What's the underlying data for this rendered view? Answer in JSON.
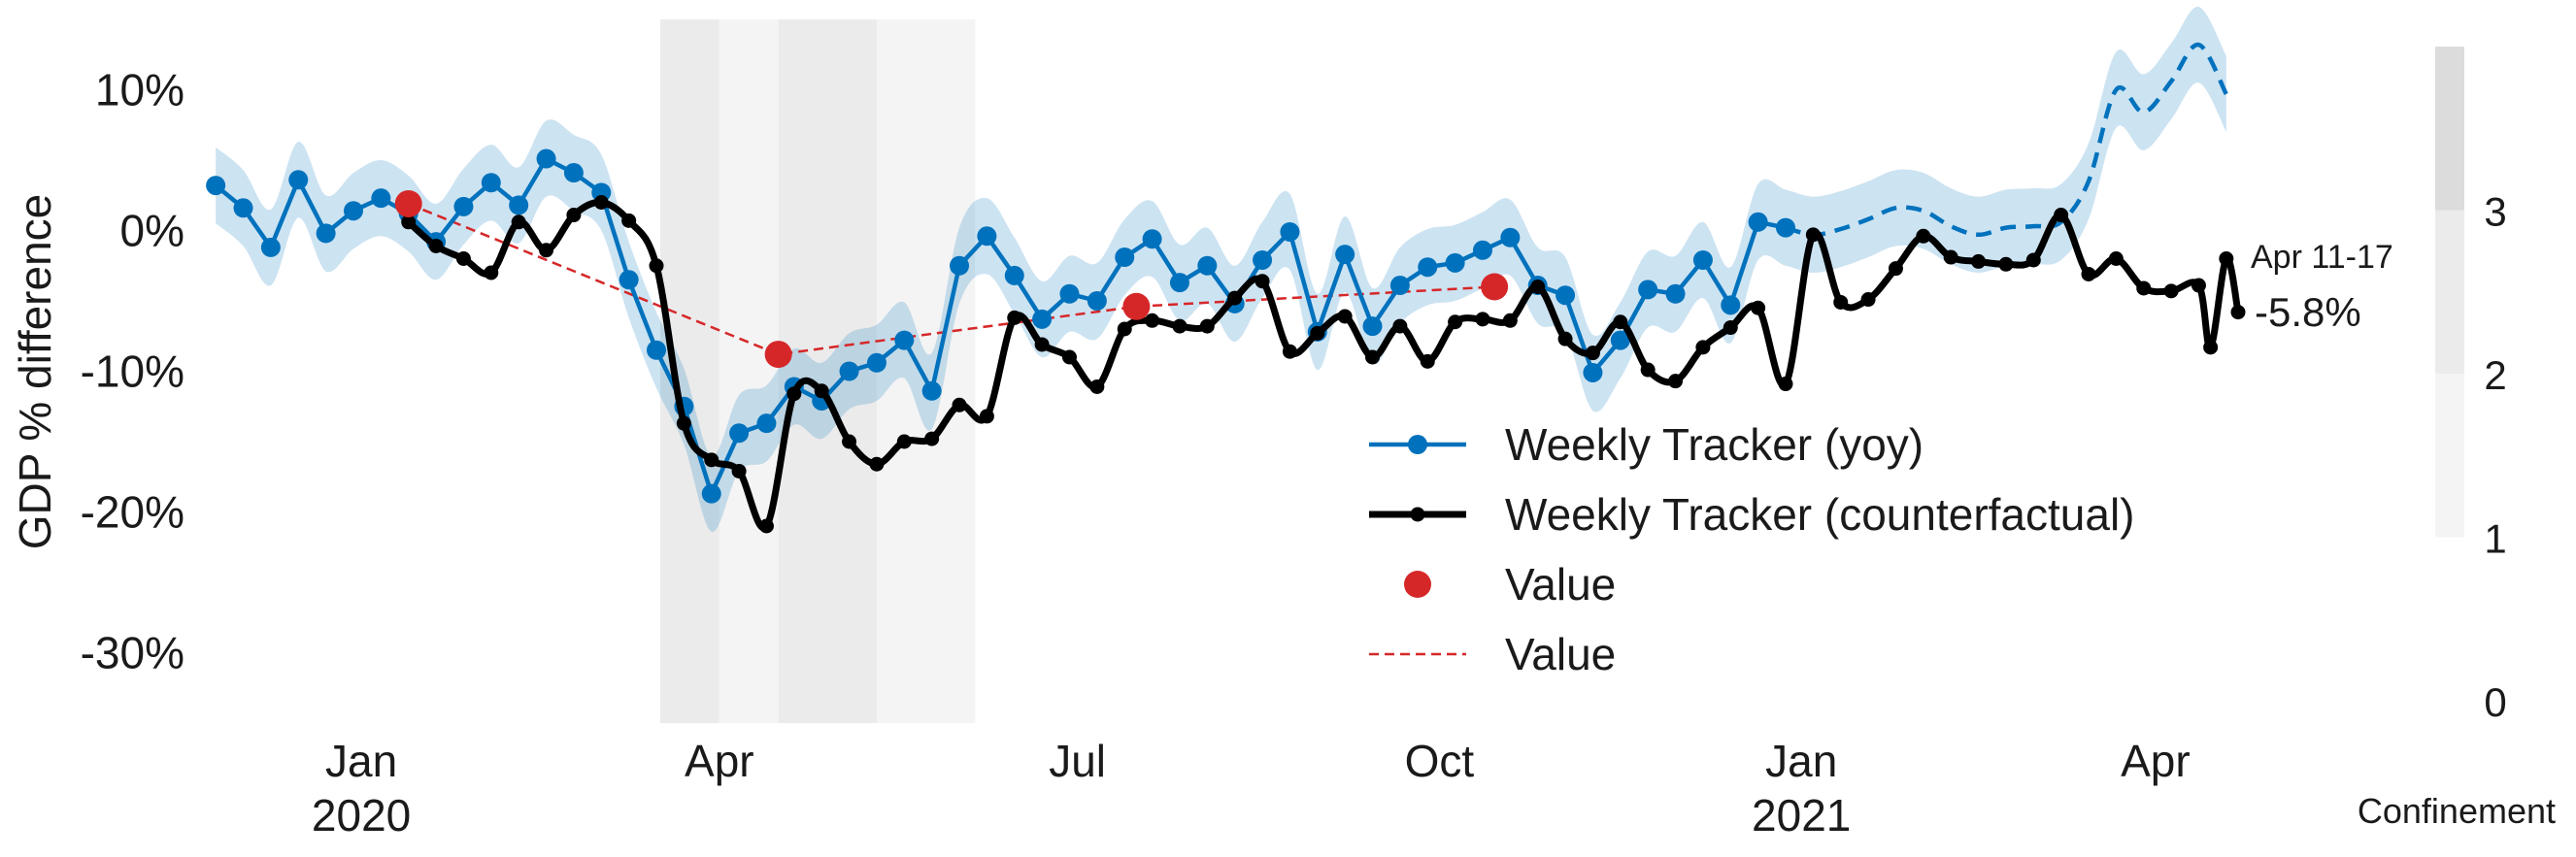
{
  "chart_data": {
    "type": "line",
    "ylabel": "GDP % difference",
    "ylim": [
      -35,
      15
    ],
    "yticks": [
      {
        "value": 10,
        "label": "10%"
      },
      {
        "value": 0,
        "label": "0%"
      },
      {
        "value": -10,
        "label": "-10%"
      },
      {
        "value": -20,
        "label": "-20%"
      },
      {
        "value": -30,
        "label": "-30%"
      }
    ],
    "xlim": [
      "2019-11-22",
      "2021-04-22"
    ],
    "xticks": [
      {
        "date": "2020-01-01",
        "label": "Jan",
        "year": "2020"
      },
      {
        "date": "2020-04-01",
        "label": "Apr",
        "year": ""
      },
      {
        "date": "2020-07-01",
        "label": "Jul",
        "year": ""
      },
      {
        "date": "2020-10-01",
        "label": "Oct",
        "year": ""
      },
      {
        "date": "2021-01-01",
        "label": "Jan",
        "year": "2021"
      },
      {
        "date": "2021-04-01",
        "label": "Apr",
        "year": ""
      }
    ],
    "confinement": {
      "label": "Confinement",
      "levels": [
        0,
        1,
        2,
        3
      ],
      "shades": {
        "1": "#f4f4f4",
        "2": "#ebebeb",
        "3": "#dcdcdc"
      },
      "periods": [
        {
          "start": "2020-03-17",
          "end": "2020-04-01",
          "level": 2
        },
        {
          "start": "2020-04-01",
          "end": "2020-04-16",
          "level": 1
        },
        {
          "start": "2020-04-16",
          "end": "2020-05-11",
          "level": 2
        },
        {
          "start": "2020-05-11",
          "end": "2020-06-05",
          "level": 1
        }
      ]
    },
    "series": [
      {
        "name": "Weekly Tracker (yoy)",
        "color": "#0072bd",
        "points": [
          [
            "2019-11-25",
            3.2
          ],
          [
            "2019-12-02",
            1.6
          ],
          [
            "2019-12-09",
            -1.2
          ],
          [
            "2019-12-16",
            3.6
          ],
          [
            "2019-12-23",
            -0.2
          ],
          [
            "2019-12-30",
            1.4
          ],
          [
            "2020-01-06",
            2.3
          ],
          [
            "2020-01-13",
            1.2
          ],
          [
            "2020-01-20",
            -0.8
          ],
          [
            "2020-01-27",
            1.7
          ],
          [
            "2020-02-03",
            3.4
          ],
          [
            "2020-02-10",
            1.8
          ],
          [
            "2020-02-17",
            5.1
          ],
          [
            "2020-02-24",
            4.1
          ],
          [
            "2020-03-02",
            2.7
          ],
          [
            "2020-03-09",
            -3.5
          ],
          [
            "2020-03-16",
            -8.5
          ],
          [
            "2020-03-23",
            -12.5
          ],
          [
            "2020-03-30",
            -18.7
          ],
          [
            "2020-04-06",
            -14.4
          ],
          [
            "2020-04-13",
            -13.7
          ],
          [
            "2020-04-20",
            -11.1
          ],
          [
            "2020-04-27",
            -12.1
          ],
          [
            "2020-05-04",
            -10.0
          ],
          [
            "2020-05-11",
            -9.4
          ],
          [
            "2020-05-18",
            -7.8
          ],
          [
            "2020-05-25",
            -11.4
          ],
          [
            "2020-06-01",
            -2.5
          ],
          [
            "2020-06-08",
            -0.4
          ],
          [
            "2020-06-15",
            -3.2
          ],
          [
            "2020-06-22",
            -6.3
          ],
          [
            "2020-06-29",
            -4.5
          ],
          [
            "2020-07-06",
            -5.0
          ],
          [
            "2020-07-13",
            -1.9
          ],
          [
            "2020-07-20",
            -0.6
          ],
          [
            "2020-07-27",
            -3.7
          ],
          [
            "2020-08-03",
            -2.5
          ],
          [
            "2020-08-10",
            -5.2
          ],
          [
            "2020-08-17",
            -2.1
          ],
          [
            "2020-08-24",
            -0.1
          ],
          [
            "2020-08-31",
            -7.2
          ],
          [
            "2020-09-07",
            -1.7
          ],
          [
            "2020-09-14",
            -6.8
          ],
          [
            "2020-09-21",
            -3.9
          ],
          [
            "2020-09-28",
            -2.6
          ],
          [
            "2020-10-05",
            -2.3
          ],
          [
            "2020-10-12",
            -1.4
          ],
          [
            "2020-10-19",
            -0.5
          ],
          [
            "2020-10-26",
            -3.9
          ],
          [
            "2020-11-02",
            -4.6
          ],
          [
            "2020-11-09",
            -10.1
          ],
          [
            "2020-11-16",
            -7.8
          ],
          [
            "2020-11-23",
            -4.2
          ],
          [
            "2020-11-30",
            -4.5
          ],
          [
            "2020-12-07",
            -2.1
          ],
          [
            "2020-12-14",
            -5.3
          ],
          [
            "2020-12-21",
            0.6
          ],
          [
            "2020-12-28",
            0.2
          ]
        ],
        "projection": [
          [
            "2020-12-28",
            0.2
          ],
          [
            "2021-01-04",
            -0.3
          ],
          [
            "2021-01-11",
            0.1
          ],
          [
            "2021-01-18",
            0.8
          ],
          [
            "2021-01-25",
            1.6
          ],
          [
            "2021-02-01",
            1.4
          ],
          [
            "2021-02-08",
            0.3
          ],
          [
            "2021-02-15",
            -0.3
          ],
          [
            "2021-02-22",
            0.2
          ],
          [
            "2021-03-01",
            0.3
          ],
          [
            "2021-03-08",
            0.6
          ],
          [
            "2021-03-15",
            3.5
          ],
          [
            "2021-03-22",
            10.0
          ],
          [
            "2021-03-29",
            8.4
          ],
          [
            "2021-04-05",
            10.6
          ],
          [
            "2021-04-12",
            13.2
          ],
          [
            "2021-04-19",
            9.7
          ]
        ],
        "band_halfwidth": 2.7
      },
      {
        "name": "Weekly Tracker (counterfactual)",
        "color": "#000000",
        "points": [
          [
            "2020-01-13",
            0.6
          ],
          [
            "2020-01-20",
            -1.1
          ],
          [
            "2020-01-27",
            -2.0
          ],
          [
            "2020-02-03",
            -3.0
          ],
          [
            "2020-02-10",
            0.6
          ],
          [
            "2020-02-17",
            -1.4
          ],
          [
            "2020-02-24",
            1.1
          ],
          [
            "2020-03-02",
            2.0
          ],
          [
            "2020-03-09",
            0.7
          ],
          [
            "2020-03-16",
            -2.5
          ],
          [
            "2020-03-23",
            -13.7
          ],
          [
            "2020-03-30",
            -16.3
          ],
          [
            "2020-04-06",
            -17.1
          ],
          [
            "2020-04-13",
            -21.0
          ],
          [
            "2020-04-20",
            -11.6
          ],
          [
            "2020-04-27",
            -11.4
          ],
          [
            "2020-05-04",
            -15.0
          ],
          [
            "2020-05-11",
            -16.6
          ],
          [
            "2020-05-18",
            -15.0
          ],
          [
            "2020-05-25",
            -14.8
          ],
          [
            "2020-06-01",
            -12.4
          ],
          [
            "2020-06-08",
            -13.2
          ],
          [
            "2020-06-15",
            -6.2
          ],
          [
            "2020-06-22",
            -8.1
          ],
          [
            "2020-06-29",
            -9.0
          ],
          [
            "2020-07-06",
            -11.1
          ],
          [
            "2020-07-13",
            -7.0
          ],
          [
            "2020-07-20",
            -6.4
          ],
          [
            "2020-07-27",
            -6.8
          ],
          [
            "2020-08-03",
            -6.8
          ],
          [
            "2020-08-10",
            -4.8
          ],
          [
            "2020-08-17",
            -3.6
          ],
          [
            "2020-08-24",
            -8.6
          ],
          [
            "2020-08-31",
            -7.3
          ],
          [
            "2020-09-07",
            -6.1
          ],
          [
            "2020-09-14",
            -9.0
          ],
          [
            "2020-09-21",
            -6.8
          ],
          [
            "2020-09-28",
            -9.3
          ],
          [
            "2020-10-05",
            -6.5
          ],
          [
            "2020-10-12",
            -6.3
          ],
          [
            "2020-10-19",
            -6.4
          ],
          [
            "2020-10-26",
            -4.0
          ],
          [
            "2020-11-02",
            -7.7
          ],
          [
            "2020-11-09",
            -8.7
          ],
          [
            "2020-11-16",
            -6.5
          ],
          [
            "2020-11-23",
            -9.9
          ],
          [
            "2020-11-30",
            -10.7
          ],
          [
            "2020-12-07",
            -8.3
          ],
          [
            "2020-12-14",
            -6.9
          ],
          [
            "2020-12-21",
            -5.5
          ],
          [
            "2020-12-28",
            -10.9
          ],
          [
            "2021-01-04",
            -0.3
          ],
          [
            "2021-01-11",
            -5.1
          ],
          [
            "2021-01-18",
            -4.9
          ],
          [
            "2021-01-25",
            -2.7
          ],
          [
            "2021-02-01",
            -0.4
          ],
          [
            "2021-02-08",
            -1.9
          ],
          [
            "2021-02-15",
            -2.2
          ],
          [
            "2021-02-22",
            -2.4
          ],
          [
            "2021-03-01",
            -2.1
          ],
          [
            "2021-03-08",
            1.1
          ],
          [
            "2021-03-15",
            -3.1
          ],
          [
            "2021-03-22",
            -2.0
          ],
          [
            "2021-03-29",
            -4.1
          ],
          [
            "2021-04-05",
            -4.3
          ],
          [
            "2021-04-12",
            -3.9
          ],
          [
            "2021-04-15",
            -8.3
          ],
          [
            "2021-04-19",
            -2.0
          ],
          [
            "2021-04-22",
            -5.8
          ]
        ]
      },
      {
        "name": "Value",
        "color": "#d62728",
        "style": "markers",
        "points": [
          [
            "2020-01-13",
            1.9
          ],
          [
            "2020-04-16",
            -8.8
          ],
          [
            "2020-07-16",
            -5.4
          ],
          [
            "2020-10-15",
            -4.0
          ]
        ]
      },
      {
        "name": "Value",
        "color": "#d62728",
        "style": "dashed",
        "points": [
          [
            "2020-01-13",
            1.9
          ],
          [
            "2020-04-16",
            -8.8
          ],
          [
            "2020-07-16",
            -5.4
          ],
          [
            "2020-10-15",
            -4.0
          ]
        ]
      }
    ],
    "annotation": {
      "period": "Apr 11-17",
      "value": "-5.8%"
    },
    "legend": {
      "placement": "lower-center"
    }
  }
}
